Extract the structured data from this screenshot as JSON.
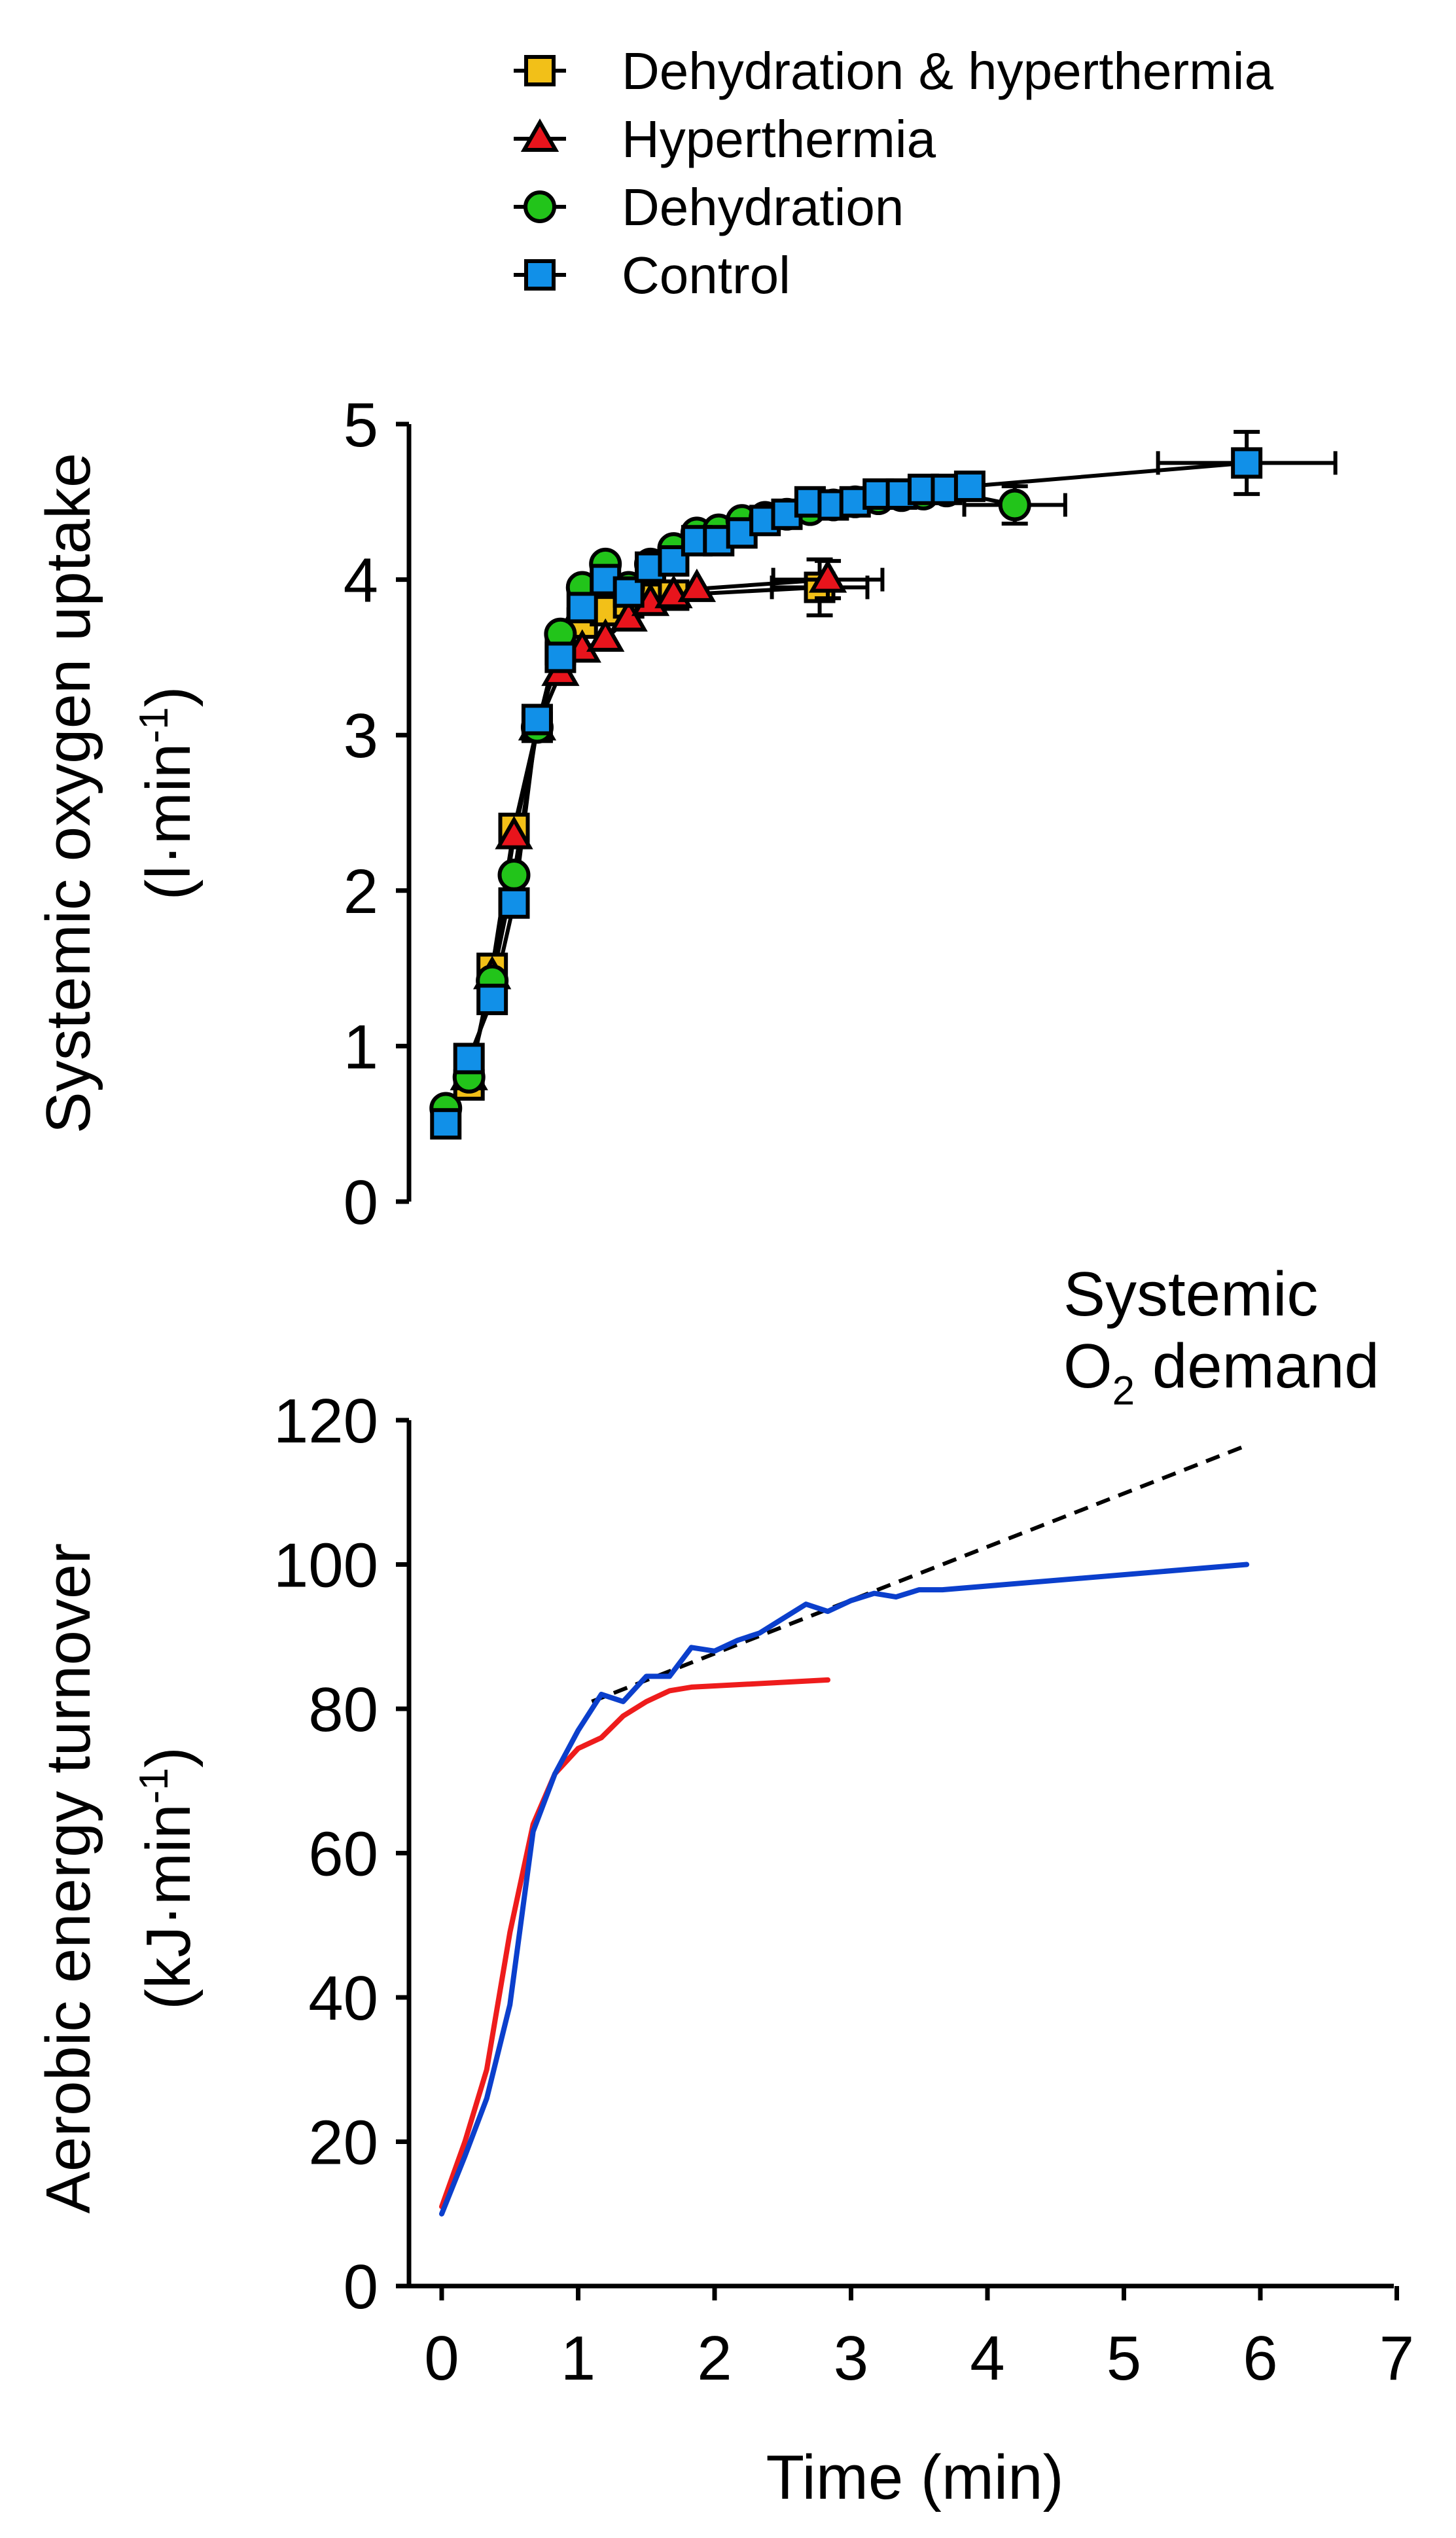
{
  "colors": {
    "dehydration_hyperthermia": "#f2c018",
    "hyperthermia": "#e8141c",
    "dehydration": "#22c41a",
    "control": "#1190e8",
    "turnover_control": "#0b3fcc",
    "turnover_hyperthermia": "#ee1c1c",
    "demand": "#000000"
  },
  "chart_data": [
    {
      "type": "scatter",
      "title": "",
      "xlabel": "",
      "ylabel": [
        "Systemic oxygen uptake",
        "(l·min",
        "-1",
        ")"
      ],
      "xlim": [
        0,
        7
      ],
      "ylim": [
        0,
        5
      ],
      "yticks": [
        "0",
        "1",
        "2",
        "3",
        "4",
        "5"
      ],
      "legend": [
        {
          "name": "Dehydration & hyperthermia",
          "color_key": "dehydration_hyperthermia",
          "marker": "square"
        },
        {
          "name": "Hyperthermia",
          "color_key": "hyperthermia",
          "marker": "triangle"
        },
        {
          "name": "Dehydration",
          "color_key": "dehydration",
          "marker": "circle"
        },
        {
          "name": "Control",
          "color_key": "control",
          "marker": "square"
        }
      ],
      "series": [
        {
          "name": "Dehydration & hyperthermia",
          "color_key": "dehydration_hyperthermia",
          "marker": "square",
          "x": [
            0.2,
            0.37,
            0.53,
            0.7,
            0.87,
            1.03,
            1.2,
            1.37,
            1.53,
            1.7,
            2.77
          ],
          "y": [
            0.75,
            1.5,
            2.4,
            3.05,
            3.55,
            3.72,
            3.8,
            3.85,
            3.88,
            3.9,
            3.95
          ],
          "xerr": [
            0,
            0,
            0,
            0,
            0,
            0,
            0,
            0,
            0,
            0,
            0.35
          ],
          "yerr": [
            0,
            0,
            0,
            0,
            0,
            0,
            0,
            0,
            0,
            0,
            0.18
          ]
        },
        {
          "name": "Hyperthermia",
          "color_key": "hyperthermia",
          "marker": "triangle",
          "x": [
            0.2,
            0.37,
            0.53,
            0.7,
            0.87,
            1.03,
            1.2,
            1.37,
            1.53,
            1.7,
            1.87,
            2.83
          ],
          "y": [
            0.8,
            1.45,
            2.35,
            3.05,
            3.4,
            3.55,
            3.62,
            3.75,
            3.85,
            3.9,
            3.94,
            4.0
          ],
          "xerr": [
            0,
            0,
            0,
            0,
            0,
            0,
            0,
            0,
            0,
            0,
            0,
            0.4
          ],
          "yerr": [
            0,
            0,
            0,
            0,
            0,
            0,
            0,
            0,
            0,
            0,
            0,
            0.12
          ]
        },
        {
          "name": "Dehydration",
          "color_key": "dehydration",
          "marker": "circle",
          "x": [
            0.03,
            0.2,
            0.37,
            0.53,
            0.7,
            0.87,
            1.03,
            1.2,
            1.37,
            1.53,
            1.7,
            1.87,
            2.03,
            2.2,
            2.37,
            2.53,
            2.7,
            2.87,
            3.03,
            3.2,
            3.37,
            3.53,
            3.7,
            4.2
          ],
          "y": [
            0.6,
            0.8,
            1.42,
            2.1,
            3.05,
            3.65,
            3.95,
            4.1,
            3.95,
            4.1,
            4.2,
            4.3,
            4.32,
            4.38,
            4.4,
            4.42,
            4.45,
            4.48,
            4.5,
            4.52,
            4.54,
            4.55,
            4.57,
            4.48
          ],
          "xerr": [
            0,
            0,
            0,
            0,
            0,
            0,
            0,
            0,
            0,
            0,
            0,
            0,
            0,
            0,
            0,
            0,
            0,
            0,
            0,
            0,
            0,
            0,
            0,
            0.37
          ],
          "yerr": [
            0,
            0,
            0,
            0,
            0,
            0,
            0,
            0,
            0,
            0,
            0,
            0,
            0,
            0,
            0,
            0,
            0,
            0,
            0,
            0,
            0,
            0,
            0,
            0.12
          ]
        },
        {
          "name": "Control",
          "color_key": "control",
          "marker": "square",
          "x": [
            0.03,
            0.2,
            0.37,
            0.53,
            0.7,
            0.87,
            1.03,
            1.2,
            1.37,
            1.53,
            1.7,
            1.87,
            2.03,
            2.2,
            2.37,
            2.53,
            2.7,
            2.87,
            3.03,
            3.2,
            3.37,
            3.53,
            3.7,
            3.87,
            5.9
          ],
          "y": [
            0.5,
            0.92,
            1.3,
            1.92,
            3.1,
            3.5,
            3.82,
            4.0,
            3.92,
            4.08,
            4.12,
            4.25,
            4.25,
            4.3,
            4.38,
            4.42,
            4.5,
            4.48,
            4.5,
            4.55,
            4.55,
            4.58,
            4.58,
            4.6,
            4.75
          ],
          "xerr": [
            0,
            0,
            0,
            0,
            0,
            0,
            0,
            0,
            0,
            0,
            0,
            0,
            0,
            0,
            0,
            0,
            0,
            0,
            0,
            0,
            0,
            0,
            0,
            0,
            0.65
          ],
          "yerr": [
            0,
            0,
            0,
            0,
            0,
            0,
            0,
            0,
            0,
            0,
            0,
            0,
            0,
            0,
            0,
            0,
            0,
            0,
            0,
            0,
            0,
            0,
            0,
            0,
            0.2
          ]
        }
      ]
    },
    {
      "type": "line",
      "title": "",
      "xlabel": "Time (min)",
      "ylabel": [
        "Aerobic energy turnover",
        "(kJ·min",
        "-1",
        ")"
      ],
      "xlim": [
        0,
        7
      ],
      "ylim": [
        0,
        120
      ],
      "xticks": [
        "0",
        "1",
        "2",
        "3",
        "4",
        "5",
        "6",
        "7"
      ],
      "yticks": [
        "0",
        "20",
        "40",
        "60",
        "80",
        "100",
        "120"
      ],
      "annotation": {
        "line1": "Systemic",
        "line2_pre": "O",
        "line2_sub": "2",
        "line2_post": " demand"
      },
      "series": [
        {
          "name": "Control",
          "color_key": "turnover_control",
          "style": "solid",
          "x": [
            0.0,
            0.17,
            0.33,
            0.5,
            0.67,
            0.83,
            1.0,
            1.17,
            1.33,
            1.5,
            1.67,
            1.83,
            2.0,
            2.17,
            2.33,
            2.5,
            2.67,
            2.83,
            3.0,
            3.17,
            3.33,
            3.5,
            3.67,
            5.9
          ],
          "y": [
            10,
            18,
            26,
            39,
            63,
            71,
            77,
            82,
            81,
            84.5,
            84.5,
            88.5,
            88,
            89.5,
            90.5,
            92.5,
            94.5,
            93.5,
            95,
            96,
            95.5,
            96.5,
            96.5,
            100
          ]
        },
        {
          "name": "Hyperthermia",
          "color_key": "turnover_hyperthermia",
          "style": "solid",
          "x": [
            0.0,
            0.17,
            0.33,
            0.5,
            0.67,
            0.83,
            1.0,
            1.17,
            1.33,
            1.5,
            1.67,
            1.83,
            2.83
          ],
          "y": [
            11,
            20,
            30,
            49,
            64,
            71,
            74.5,
            76,
            79,
            81,
            82.5,
            83,
            84
          ]
        },
        {
          "name": "Systemic O2 demand",
          "color_key": "demand",
          "style": "dashed",
          "x": [
            1.1,
            5.9
          ],
          "y": [
            81,
            116.5
          ]
        }
      ]
    }
  ]
}
